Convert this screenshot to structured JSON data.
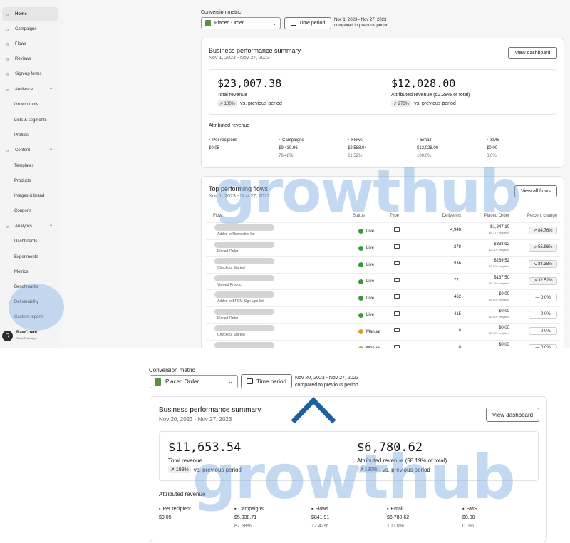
{
  "sidebar": {
    "items": [
      {
        "label": "Home",
        "icon": "home-icon",
        "active": true
      },
      {
        "label": "Campaigns",
        "icon": "campaigns-icon"
      },
      {
        "label": "Flows",
        "icon": "flows-icon"
      },
      {
        "label": "Reviews",
        "icon": "star-icon"
      },
      {
        "label": "Sign-up forms",
        "icon": "forms-icon"
      },
      {
        "label": "Audience",
        "icon": "audience-icon",
        "chev": "^"
      },
      {
        "label": "Growth tools",
        "sub": true
      },
      {
        "label": "Lists & segments",
        "sub": true
      },
      {
        "label": "Profiles",
        "sub": true
      },
      {
        "label": "Content",
        "icon": "content-icon",
        "chev": "^"
      },
      {
        "label": "Templates",
        "sub": true
      },
      {
        "label": "Products",
        "sub": true
      },
      {
        "label": "Images & brand",
        "sub": true
      },
      {
        "label": "Coupons",
        "sub": true
      },
      {
        "label": "Analytics",
        "icon": "analytics-icon",
        "chev": "^"
      },
      {
        "label": "Dashboards",
        "sub": true
      },
      {
        "label": "Experiments",
        "sub": true
      },
      {
        "label": "Metrics",
        "sub": true
      },
      {
        "label": "Benchmarks",
        "sub": true
      },
      {
        "label": "Deliverability",
        "sub": true
      },
      {
        "label": "Custom reports",
        "sub": true
      }
    ],
    "account": {
      "initial": "R",
      "name": "RawChem...",
      "sub": "SmartTeamsign..."
    }
  },
  "top": {
    "conversion_label": "Conversion metric",
    "metric": "Placed Order",
    "time_btn": "Time period",
    "range": "Nov 1, 2023 - Nov 27, 2023",
    "compare": "compared to previous period",
    "summary": {
      "title": "Business performance summary",
      "range": "Nov 1, 2023 - Nov 27, 2023",
      "view_btn": "View dashboard",
      "total": "$23,007.38",
      "total_label": "Total revenue",
      "total_change": "100%",
      "vs": "vs. previous period",
      "attr": "$12,028.00",
      "attr_label": "Attributed revenue (52.28% of total)",
      "attr_change": "273%",
      "attributed_title": "Attributed revenue",
      "cols": [
        {
          "label": "Per recipient",
          "v1": "$0.05",
          "v2": "",
          "icon": "people-icon"
        },
        {
          "label": "Campaigns",
          "v1": "$9,439.96",
          "v2": "78.48%",
          "icon": "campaign-icon"
        },
        {
          "label": "Flows",
          "v1": "$2,588.04",
          "v2": "21.52%",
          "icon": "flows-icon"
        },
        {
          "label": "Email",
          "v1": "$12,028.00",
          "v2": "100.0%",
          "icon": "mail-icon"
        },
        {
          "label": "SMS",
          "v1": "$0.00",
          "v2": "0.0%",
          "icon": "sms-icon"
        }
      ]
    },
    "flows": {
      "title": "Top performing flows",
      "range": "Nov 1, 2023 - Nov 27, 2023",
      "view_btn": "View all flows",
      "headers": {
        "flow": "Flow",
        "status": "Status",
        "type": "Type",
        "deliveries": "Deliveries",
        "placed": "Placed Order",
        "pct": "Percent change"
      },
      "rows": [
        {
          "name": "Added to Newsletter list",
          "status": "Live",
          "deliveries": "4,948",
          "amount": "$1,847.10",
          "per": "$0.37 / recipient",
          "pct": "84.76%",
          "dir": "up"
        },
        {
          "name": "Placed Order",
          "status": "Live",
          "deliveries": "278",
          "amount": "$333.92",
          "per": "$1.20 / recipient",
          "pct": "55.96%",
          "dir": "up"
        },
        {
          "name": "Checkout Started",
          "status": "Live",
          "deliveries": "536",
          "amount": "$269.52",
          "per": "$0.50 / recipient",
          "pct": "84.38%",
          "dir": "down"
        },
        {
          "name": "Viewed Product",
          "status": "Live",
          "deliveries": "771",
          "amount": "$137.50",
          "per": "$0.18 / recipient",
          "pct": "32.52%",
          "dir": "up"
        },
        {
          "name": "Added to BFCM Sign Ups list",
          "status": "Live",
          "deliveries": "462",
          "amount": "$0.00",
          "per": "$0.00 / recipient",
          "pct": "0.0%",
          "dir": "flat"
        },
        {
          "name": "Placed Order",
          "status": "Live",
          "deliveries": "415",
          "amount": "$0.00",
          "per": "$0.00 / recipient",
          "pct": "0.0%",
          "dir": "flat"
        },
        {
          "name": "Checkout Started",
          "status": "Manual",
          "deliveries": "0",
          "amount": "$0.00",
          "per": "$0.00 / recipient",
          "pct": "0.0%",
          "dir": "flat"
        },
        {
          "name": "",
          "status": "Manual",
          "deliveries": "0",
          "amount": "$0.00",
          "per": "",
          "pct": "0.0%",
          "dir": "flat"
        }
      ]
    }
  },
  "bottom": {
    "conversion_label": "Conversion metric",
    "metric": "Placed Order",
    "time_btn": "Time period",
    "range": "Nov 20, 2023 - Nov 27, 2023",
    "compare": "compared to previous period",
    "summary": {
      "title": "Business performance summary",
      "range": "Nov 20, 2023 - Nov 27, 2023",
      "view_btn": "View dashboard",
      "total": "$11,653.54",
      "total_label": "Total revenue",
      "total_change": "199%",
      "vs": "vs. previous period",
      "attr": "$6,780.62",
      "attr_label": "Attributed revenue (58.19% of total)",
      "attr_change": "180%",
      "attributed_title": "Attributed revenue",
      "cols": [
        {
          "label": "Per recipient",
          "v1": "$0.05",
          "v2": "",
          "icon": "people-icon"
        },
        {
          "label": "Campaigns",
          "v1": "$5,938.71",
          "v2": "87.58%",
          "icon": "campaign-icon"
        },
        {
          "label": "Flows",
          "v1": "$841.91",
          "v2": "12.42%",
          "icon": "flows-icon"
        },
        {
          "label": "Email",
          "v1": "$6,780.62",
          "v2": "100.0%",
          "icon": "mail-icon"
        },
        {
          "label": "SMS",
          "v1": "$0.00",
          "v2": "0.0%",
          "icon": "sms-icon"
        }
      ]
    }
  },
  "watermark": "growthub",
  "colors": {
    "accent_arrow": "#1f5f9f",
    "watermark": "#78aae1",
    "live": "#3a9a3a",
    "manual": "#d7a12e"
  }
}
